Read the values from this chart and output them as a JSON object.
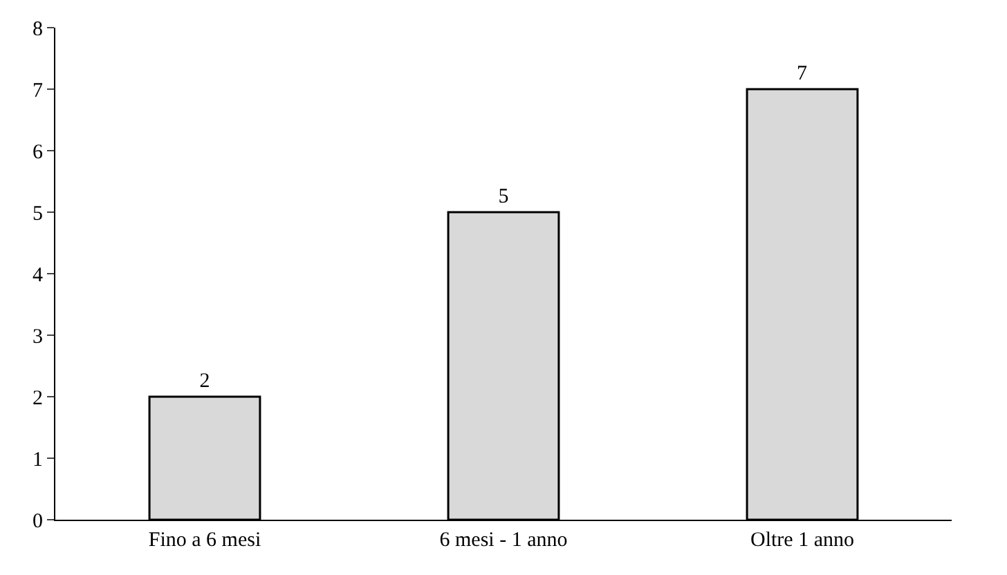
{
  "chart_data": {
    "type": "bar",
    "categories": [
      "Fino a 6 mesi",
      "6 mesi - 1 anno",
      "Oltre 1 anno"
    ],
    "values": [
      2,
      5,
      7
    ],
    "color": "#d9d9d9",
    "ylim": [
      0,
      8
    ],
    "yticks": [
      0,
      1,
      2,
      3,
      4,
      5,
      6,
      7,
      8
    ],
    "data_labels": true
  }
}
